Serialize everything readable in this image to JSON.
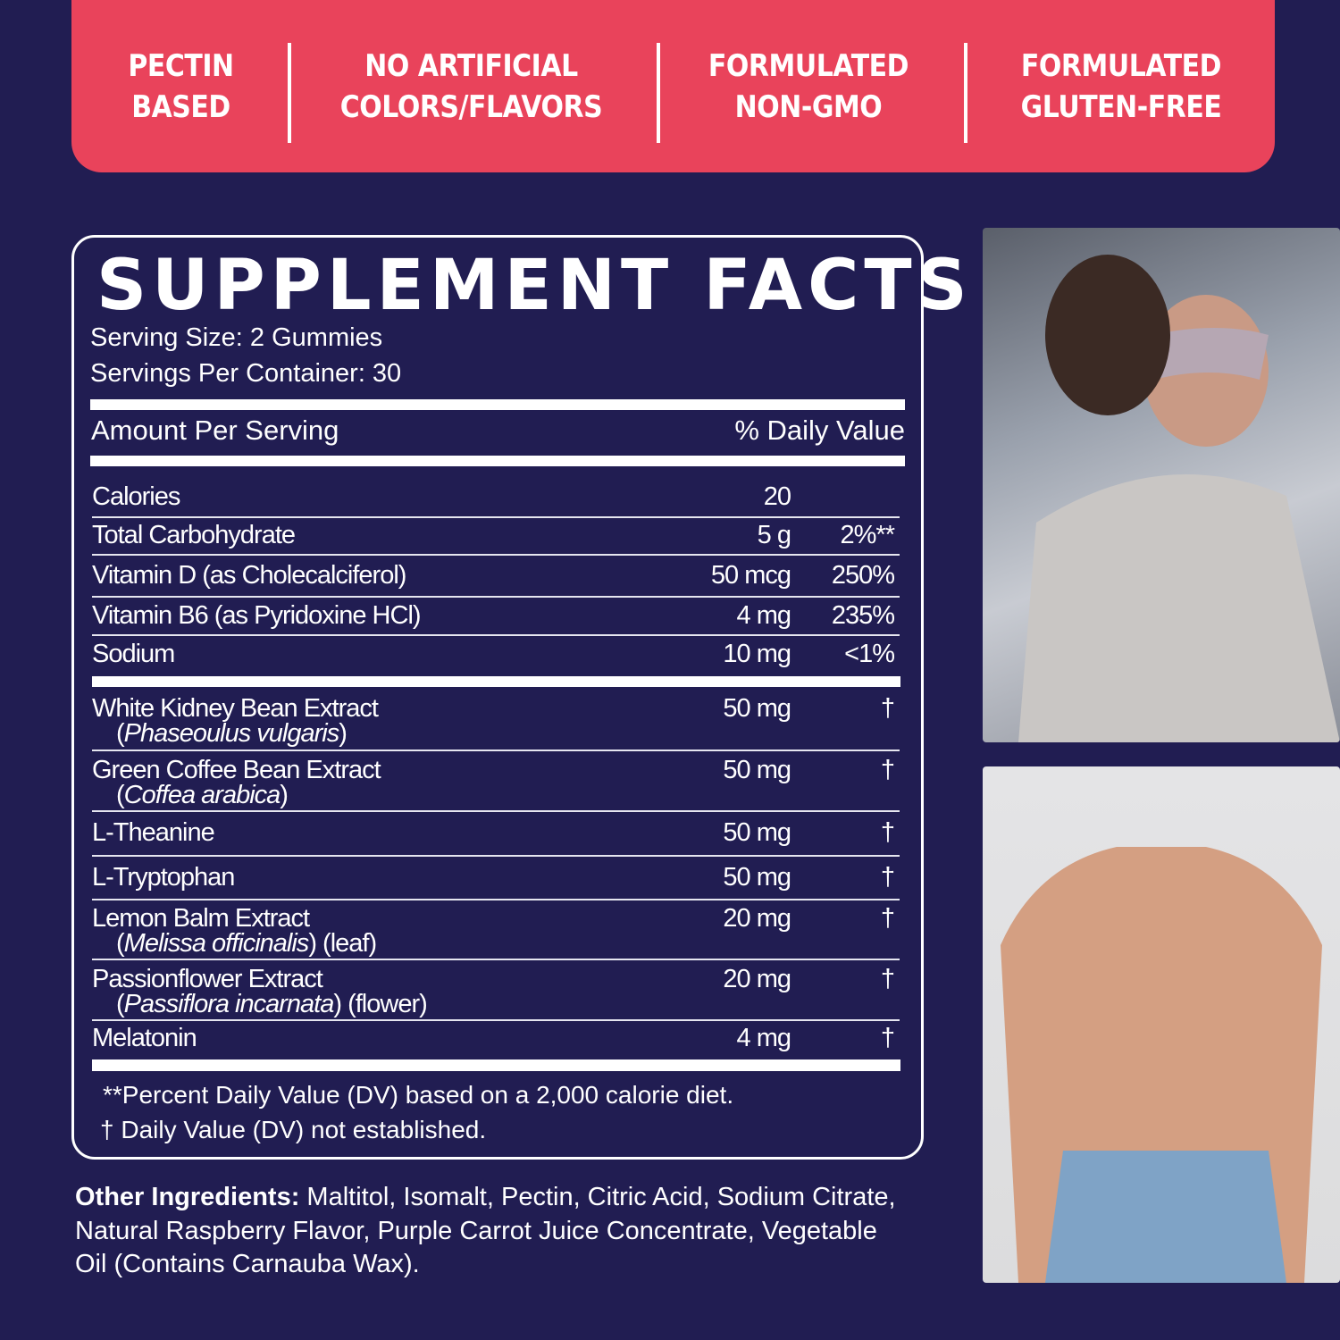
{
  "banner": {
    "color": "#e9435b",
    "badges": [
      {
        "line1": "PECTIN",
        "line2": "BASED"
      },
      {
        "line1": "NO ARTIFICIAL",
        "line2": "COLORS/FLAVORS"
      },
      {
        "line1": "FORMULATED",
        "line2": "NON-GMO"
      },
      {
        "line1": "FORMULATED",
        "line2": "GLUTEN-FREE"
      }
    ]
  },
  "facts": {
    "title": "SUPPLEMENT FACTS",
    "serving_size": "Serving Size: 2 Gummies",
    "servings_per_container": "Servings Per Container: 30",
    "amount_header": "Amount Per Serving",
    "dv_header": "% Daily Value",
    "rows": [
      {
        "name": "Calories",
        "sub": "",
        "amount": "20",
        "dv": ""
      },
      {
        "name": "Total Carbohydrate",
        "sub": "",
        "amount": "5 g",
        "dv": "2%**"
      },
      {
        "name": "Vitamin D (as Cholecalciferol)",
        "sub": "",
        "amount": "50 mcg",
        "dv": "250%"
      },
      {
        "name": "Vitamin B6 (as Pyridoxine HCl)",
        "sub": "",
        "amount": "4 mg",
        "dv": "235%"
      },
      {
        "name": "Sodium",
        "sub": "",
        "amount": "10 mg",
        "dv": "<1%"
      },
      {
        "name": "White Kidney Bean Extract",
        "sub_latin": "Phaseoulus vulgaris",
        "sub_extra": "",
        "amount": "50 mg",
        "dv": "†"
      },
      {
        "name": "Green Coffee Bean Extract",
        "sub_latin": "Coffea arabica",
        "sub_extra": "",
        "amount": "50 mg",
        "dv": "†"
      },
      {
        "name": "L-Theanine",
        "sub": "",
        "amount": "50 mg",
        "dv": "†"
      },
      {
        "name": "L-Tryptophan",
        "sub": "",
        "amount": "50 mg",
        "dv": "†"
      },
      {
        "name": "Lemon Balm Extract",
        "sub_latin": "Melissa officinalis",
        "sub_extra": " (leaf)",
        "amount": "20 mg",
        "dv": "†"
      },
      {
        "name": "Passionflower Extract",
        "sub_latin": "Passiflora incarnata",
        "sub_extra": " (flower)",
        "amount": "20 mg",
        "dv": "†"
      },
      {
        "name": "Melatonin",
        "sub": "",
        "amount": "4 mg",
        "dv": "†"
      }
    ],
    "footnote1": "**Percent Daily Value (DV) based on a 2,000 calorie diet.",
    "footnote2": "† Daily Value (DV) not established."
  },
  "other_ingredients": {
    "label": "Other Ingredients:",
    "text": " Maltitol, Isomalt, Pectin, Citric Acid, Sodium Citrate, Natural Raspberry Flavor, Purple Carrot Juice Concentrate, Vegetable Oil (Contains Carnauba Wax)."
  },
  "photos": [
    {
      "icon": "woman-sleep-mask-photo"
    },
    {
      "icon": "shirtless-man-photo"
    }
  ],
  "colors": {
    "background": "#211d52",
    "accent": "#e9435b",
    "text": "#ffffff"
  }
}
